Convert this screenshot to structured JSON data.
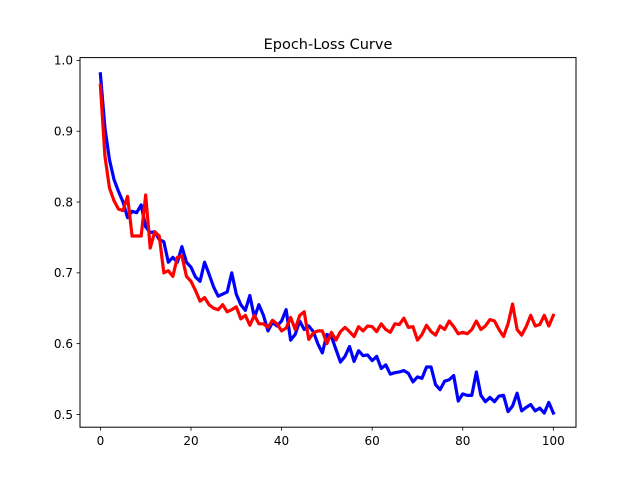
{
  "chart_data": {
    "type": "line",
    "title": "Epoch-Loss Curve",
    "xlabel": "",
    "ylabel": "",
    "xlim": [
      -4.5,
      105
    ],
    "ylim": [
      0.482,
      1.004
    ],
    "xticks": [
      0,
      20,
      40,
      60,
      80,
      100
    ],
    "yticks": [
      0.5,
      0.6,
      0.7,
      0.8,
      0.9,
      1.0
    ],
    "ytick_labels": [
      "0.5",
      "0.6",
      "0.7",
      "0.8",
      "0.9",
      "1.0"
    ],
    "grid": false,
    "legend": "none",
    "series": [
      {
        "color": "#0000ff",
        "x": [
          0,
          1,
          2,
          3,
          4,
          5,
          6,
          7,
          8,
          9,
          10,
          11,
          12,
          13,
          14,
          15,
          16,
          17,
          18,
          19,
          20,
          21,
          22,
          23,
          24,
          25,
          26,
          27,
          28,
          29,
          30,
          31,
          32,
          33,
          34,
          35,
          36,
          37,
          38,
          39,
          40,
          41,
          42,
          43,
          44,
          45,
          46,
          47,
          48,
          49,
          50,
          51,
          52,
          53,
          54,
          55,
          56,
          57,
          58,
          59,
          60,
          61,
          62,
          63,
          64,
          65,
          66,
          67,
          68,
          69,
          70,
          71,
          72,
          73,
          74,
          75,
          76,
          77,
          78,
          79,
          80,
          81,
          82,
          83,
          84,
          85,
          86,
          87,
          88,
          89,
          90,
          91,
          92,
          93,
          94,
          95,
          96,
          97,
          98,
          99,
          100
        ],
        "values": [
          0.981,
          0.905,
          0.86,
          0.832,
          0.815,
          0.8,
          0.778,
          0.787,
          0.785,
          0.796,
          0.765,
          0.757,
          0.758,
          0.747,
          0.744,
          0.715,
          0.722,
          0.715,
          0.737,
          0.715,
          0.708,
          0.694,
          0.688,
          0.715,
          0.698,
          0.68,
          0.667,
          0.67,
          0.673,
          0.7,
          0.67,
          0.655,
          0.647,
          0.668,
          0.637,
          0.655,
          0.64,
          0.618,
          0.63,
          0.625,
          0.632,
          0.648,
          0.605,
          0.613,
          0.632,
          0.62,
          0.625,
          0.617,
          0.6,
          0.587,
          0.613,
          0.61,
          0.592,
          0.574,
          0.582,
          0.596,
          0.575,
          0.59,
          0.583,
          0.584,
          0.576,
          0.582,
          0.565,
          0.57,
          0.557,
          0.559,
          0.56,
          0.562,
          0.558,
          0.546,
          0.553,
          0.551,
          0.567,
          0.567,
          0.542,
          0.535,
          0.547,
          0.549,
          0.555,
          0.519,
          0.529,
          0.527,
          0.527,
          0.56,
          0.527,
          0.518,
          0.524,
          0.518,
          0.526,
          0.527,
          0.504,
          0.512,
          0.53,
          0.505,
          0.51,
          0.514,
          0.505,
          0.509,
          0.502,
          0.517,
          0.502
        ]
      },
      {
        "color": "#ff0000",
        "x": [
          0,
          1,
          2,
          3,
          4,
          5,
          6,
          7,
          8,
          9,
          10,
          11,
          12,
          13,
          14,
          15,
          16,
          17,
          18,
          19,
          20,
          21,
          22,
          23,
          24,
          25,
          26,
          27,
          28,
          29,
          30,
          31,
          32,
          33,
          34,
          35,
          36,
          37,
          38,
          39,
          40,
          41,
          42,
          43,
          44,
          45,
          46,
          47,
          48,
          49,
          50,
          51,
          52,
          53,
          54,
          55,
          56,
          57,
          58,
          59,
          60,
          61,
          62,
          63,
          64,
          65,
          66,
          67,
          68,
          69,
          70,
          71,
          72,
          73,
          74,
          75,
          76,
          77,
          78,
          79,
          80,
          81,
          82,
          83,
          84,
          85,
          86,
          87,
          88,
          89,
          90,
          91,
          92,
          93,
          94,
          95,
          96,
          97,
          98,
          99,
          100
        ],
        "values": [
          0.965,
          0.865,
          0.82,
          0.802,
          0.79,
          0.788,
          0.808,
          0.752,
          0.752,
          0.752,
          0.81,
          0.735,
          0.758,
          0.752,
          0.7,
          0.703,
          0.695,
          0.722,
          0.724,
          0.695,
          0.688,
          0.675,
          0.66,
          0.665,
          0.655,
          0.65,
          0.648,
          0.655,
          0.645,
          0.648,
          0.652,
          0.635,
          0.64,
          0.626,
          0.64,
          0.628,
          0.628,
          0.623,
          0.633,
          0.628,
          0.618,
          0.622,
          0.637,
          0.62,
          0.64,
          0.645,
          0.606,
          0.615,
          0.618,
          0.618,
          0.6,
          0.616,
          0.605,
          0.617,
          0.623,
          0.617,
          0.61,
          0.624,
          0.618,
          0.625,
          0.624,
          0.617,
          0.628,
          0.62,
          0.616,
          0.628,
          0.627,
          0.636,
          0.623,
          0.624,
          0.605,
          0.613,
          0.626,
          0.617,
          0.612,
          0.625,
          0.62,
          0.632,
          0.624,
          0.614,
          0.616,
          0.614,
          0.62,
          0.632,
          0.62,
          0.625,
          0.634,
          0.632,
          0.62,
          0.61,
          0.628,
          0.656,
          0.62,
          0.612,
          0.624,
          0.64,
          0.625,
          0.627,
          0.64,
          0.625,
          0.64
        ]
      }
    ]
  }
}
